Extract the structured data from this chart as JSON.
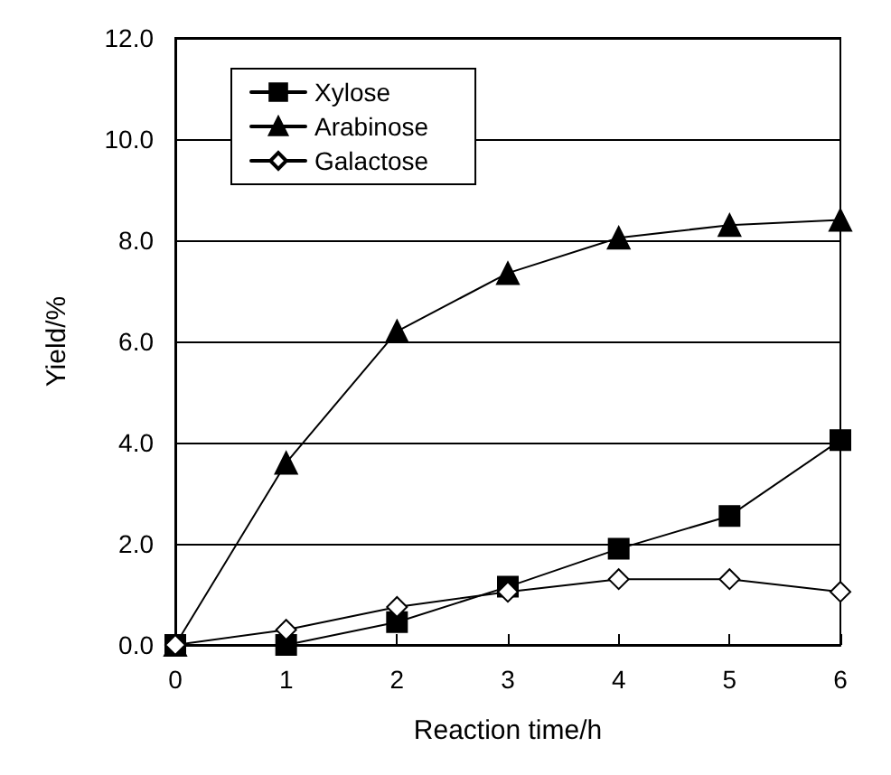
{
  "chart_data": {
    "type": "line",
    "xlabel": "Reaction time/h",
    "ylabel": "Yield/%",
    "x": [
      0,
      1,
      2,
      3,
      4,
      5,
      6
    ],
    "series": [
      {
        "name": "Xylose",
        "color": "#000000",
        "marker": "square",
        "values": [
          0,
          0,
          0.45,
          1.15,
          1.9,
          2.55,
          4.05
        ]
      },
      {
        "name": "Arabinose",
        "color": "#000000",
        "marker": "triangle",
        "values": [
          0,
          3.6,
          6.2,
          7.35,
          8.05,
          8.3,
          8.4
        ]
      },
      {
        "name": "Galactose",
        "color": "#000000",
        "marker": "diamond",
        "values": [
          0,
          0.3,
          0.75,
          1.05,
          1.3,
          1.3,
          1.05
        ]
      }
    ],
    "xlim": [
      0,
      6
    ],
    "xticks": [
      0,
      1,
      2,
      3,
      4,
      5,
      6
    ],
    "ylim": [
      0,
      12
    ],
    "yticks": [
      {
        "value": 0,
        "label": "0.0"
      },
      {
        "value": 2,
        "label": "2.0"
      },
      {
        "value": 4,
        "label": "4.0"
      },
      {
        "value": 6,
        "label": "6.0"
      },
      {
        "value": 8,
        "label": "8.0"
      },
      {
        "value": 10,
        "label": "10.0"
      },
      {
        "value": 12,
        "label": "12.0"
      }
    ],
    "grid": "y",
    "legend": "top left",
    "line_style": "solid"
  }
}
